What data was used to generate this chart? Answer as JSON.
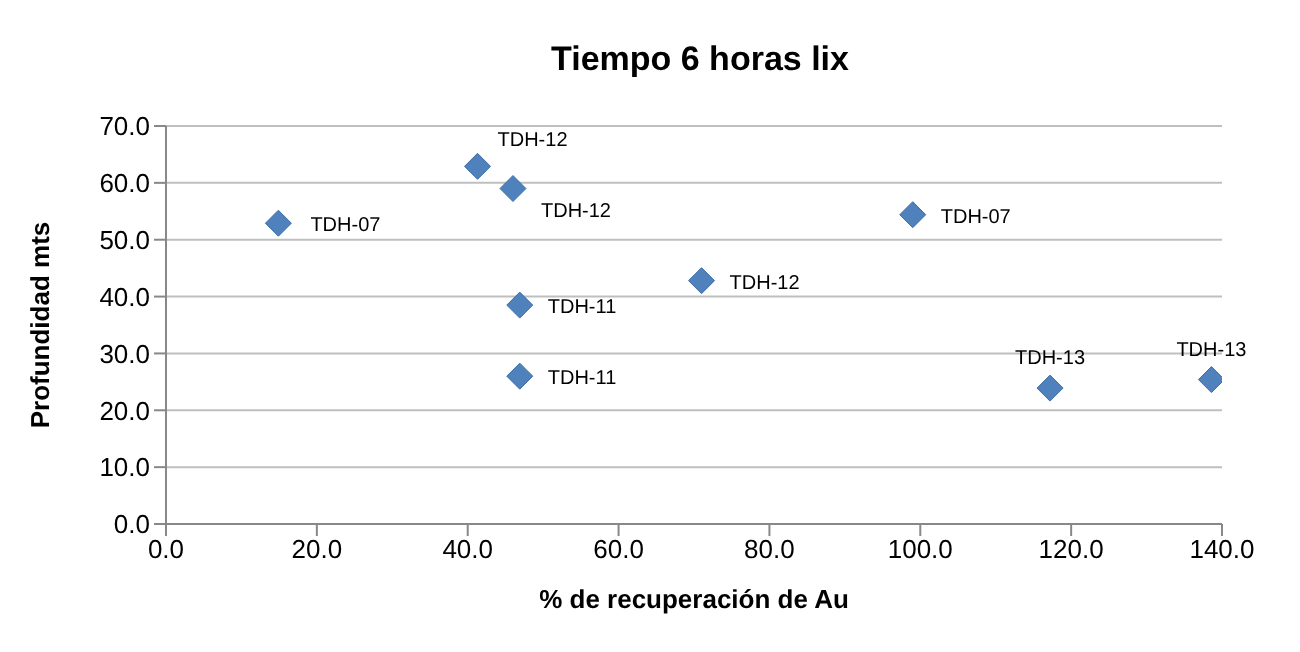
{
  "chart_data": {
    "type": "scatter",
    "title": "Tiempo 6 horas lix",
    "xlabel": "% de recuperación de Au",
    "ylabel": "Profundidad  mts",
    "series": [
      {
        "color": "#4f81bd",
        "x": [
          14.9,
          41.3,
          46.0,
          46.9,
          46.9,
          71.0,
          99.0,
          117.2,
          138.6
        ],
        "values": [
          52.9,
          62.9,
          59.0,
          38.5,
          26.0,
          42.8,
          54.4,
          23.9,
          25.4
        ]
      }
    ],
    "annotations": [
      {
        "text": "TDH-07",
        "x": 14.9,
        "y": 52.9
      },
      {
        "text": "TDH-12",
        "x": 41.3,
        "y": 62.9
      },
      {
        "text": "TDH-12",
        "x": 46.0,
        "y": 59.0
      },
      {
        "text": "TDH-11",
        "x": 46.9,
        "y": 38.5
      },
      {
        "text": "TDH-11",
        "x": 46.9,
        "y": 26.0
      },
      {
        "text": "TDH-12",
        "x": 71.0,
        "y": 42.8
      },
      {
        "text": "TDH-07",
        "x": 99.0,
        "y": 54.4
      },
      {
        "text": "TDH-13",
        "x": 117.2,
        "y": 23.9
      },
      {
        "text": "TDH-13",
        "x": 138.6,
        "y": 25.4
      }
    ],
    "xlim": [
      0,
      140
    ],
    "xticks": [
      {
        "value": 0,
        "label": "0.0"
      },
      {
        "value": 20,
        "label": "20.0"
      },
      {
        "value": 40,
        "label": "40.0"
      },
      {
        "value": 60,
        "label": "60.0"
      },
      {
        "value": 80,
        "label": "80.0"
      },
      {
        "value": 100,
        "label": "100.0"
      },
      {
        "value": 120,
        "label": "120.0"
      },
      {
        "value": 140,
        "label": "140.0"
      }
    ],
    "ylim": [
      0,
      70
    ],
    "yticks": [
      {
        "value": 0,
        "label": "0.0"
      },
      {
        "value": 10,
        "label": "10.0"
      },
      {
        "value": 20,
        "label": "20.0"
      },
      {
        "value": 30,
        "label": "30.0"
      },
      {
        "value": 40,
        "label": "40.0"
      },
      {
        "value": 50,
        "label": "50.0"
      },
      {
        "value": 60,
        "label": "60.0"
      },
      {
        "value": 70,
        "label": "70.0"
      }
    ],
    "grid": "y",
    "marker": "diamond",
    "legend": false
  }
}
